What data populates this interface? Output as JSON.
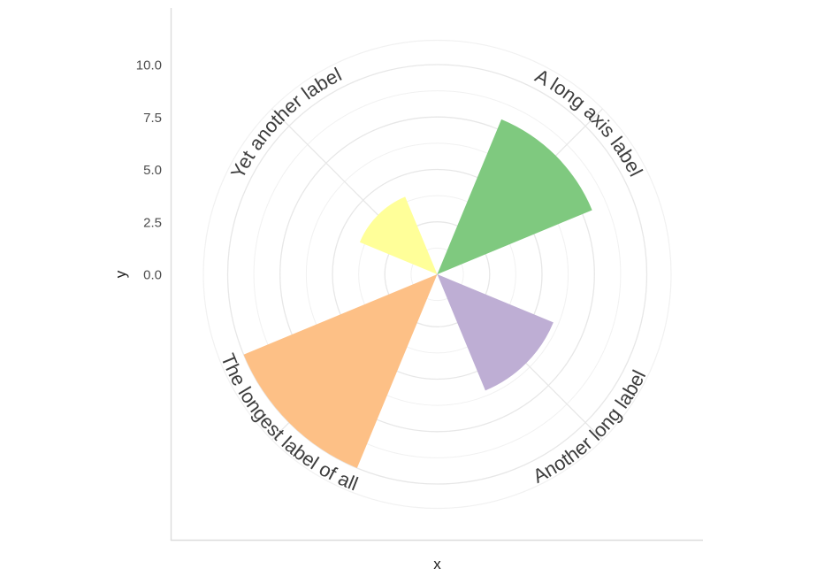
{
  "figure": {
    "background": "#FFFFFF",
    "axis_line_color": "#DCDCDC"
  },
  "chart_data": {
    "type": "bar",
    "coord": "curved_polar",
    "title": "",
    "xlabel": "x",
    "ylabel": "y",
    "categories": [
      "A long axis label",
      "Another long label",
      "The longest label of all",
      "Yet another label"
    ],
    "values": [
      8,
      6,
      10,
      4
    ],
    "bar_fill_colors": [
      "#7FC97F",
      "#BEAED4",
      "#FDC086",
      "#FFFF99"
    ],
    "palette": "Accent",
    "category_angles_deg": [
      45,
      135,
      225,
      315
    ],
    "bar_angular_width_deg": 45,
    "r_axis": {
      "ticks": [
        0,
        2.5,
        5,
        7.5,
        10
      ],
      "tick_labels": [
        "0.0",
        "2.5",
        "5.0",
        "7.5",
        "10.0"
      ],
      "minor_ticks": [
        1.25,
        3.75,
        6.25,
        8.75
      ],
      "range": [
        0,
        11.15
      ]
    },
    "grid": {
      "shown": true,
      "major_color": "#E7E7E7",
      "minor_color": "#F1F1F1"
    },
    "legend": "none",
    "text_color": "#3D3D3D",
    "tick_text_color": "#4D4D4D",
    "title_text_color": "#1F1F1F"
  }
}
